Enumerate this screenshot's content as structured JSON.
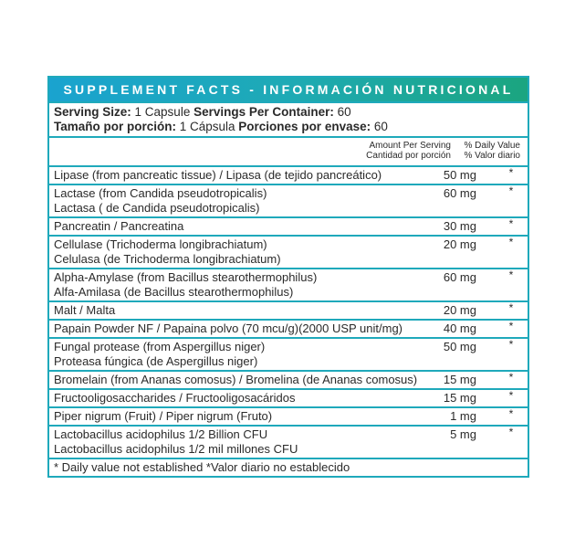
{
  "title": "SUPPLEMENT FACTS - INFORMACIÓN NUTRICIONAL",
  "serving": {
    "line1": [
      {
        "label": "Serving Size:",
        "value": " 1 Capsule "
      },
      {
        "label": "Servings Per Container:",
        "value": " 60"
      }
    ],
    "line2": [
      {
        "label": "Tamaño por porción:",
        "value": " 1 Cápsula "
      },
      {
        "label": "Porciones por envase:",
        "value": " 60"
      }
    ]
  },
  "columns": {
    "amount_en": "Amount Per Serving",
    "amount_es": "Cantidad por porción",
    "dv_en": "% Daily Value",
    "dv_es": "% Valor diario"
  },
  "ingredients": [
    {
      "lines": [
        "Lipase (from pancreatic tissue) / Lipasa (de tejido pancreático)"
      ],
      "amount": "50 mg",
      "dv": "*"
    },
    {
      "lines": [
        "Lactase (from Candida pseudotropicalis)",
        "Lactasa ( de Candida pseudotropicalis)"
      ],
      "amount": "60 mg",
      "dv": "*"
    },
    {
      "lines": [
        "Pancreatin / Pancreatina"
      ],
      "amount": "30 mg",
      "dv": "*"
    },
    {
      "lines": [
        "Cellulase (Trichoderma longibrachiatum)",
        "Celulasa (de Trichoderma longibrachiatum)"
      ],
      "amount": "20 mg",
      "dv": "*"
    },
    {
      "lines": [
        "Alpha-Amylase (from Bacillus stearothermophilus)",
        "Alfa-Amilasa (de Bacillus stearothermophilus)"
      ],
      "amount": "60 mg",
      "dv": "*"
    },
    {
      "lines": [
        "Malt / Malta"
      ],
      "amount": "20 mg",
      "dv": "*"
    },
    {
      "lines": [
        "Papain Powder NF / Papaina polvo (70 mcu/g)(2000 USP unit/mg)"
      ],
      "amount": "40 mg",
      "dv": "*"
    },
    {
      "lines": [
        "Fungal protease (from Aspergillus niger)",
        "Proteasa fúngica (de Aspergillus niger)"
      ],
      "amount": "50 mg",
      "dv": "*"
    },
    {
      "lines": [
        "Bromelain (from Ananas comosus) / Bromelina (de Ananas comosus)"
      ],
      "amount": "15 mg",
      "dv": "*"
    },
    {
      "lines": [
        "Fructooligosaccharides / Fructooligosacáridos"
      ],
      "amount": "15 mg",
      "dv": "*"
    },
    {
      "lines": [
        "Piper nigrum (Fruit) / Piper nigrum (Fruto)"
      ],
      "amount": "1 mg",
      "dv": "*"
    },
    {
      "lines": [
        "Lactobacillus acidophilus 1/2 Billion CFU",
        "Lactobacillus acidophilus 1/2 mil millones CFU"
      ],
      "amount": "5 mg",
      "dv": "*"
    }
  ],
  "footnote": "* Daily value not established *Valor diario no establecido",
  "colors": {
    "border": "#1fa9bb",
    "header_start": "#1aa3cf",
    "header_end": "#1ba57f"
  }
}
